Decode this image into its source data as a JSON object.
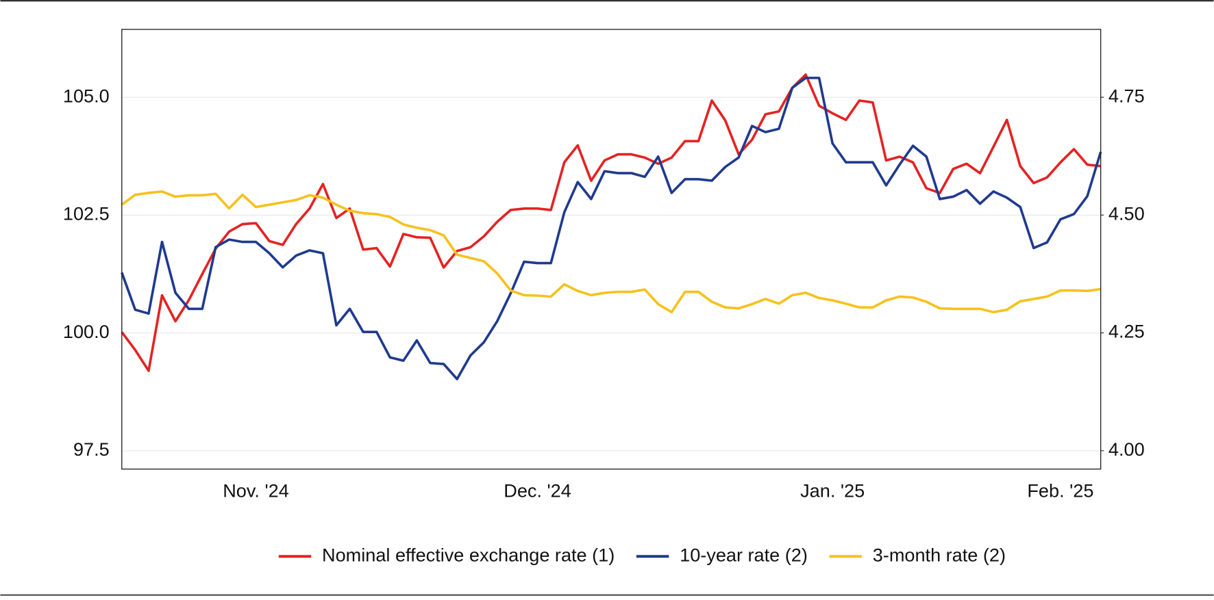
{
  "chart_data": {
    "type": "line",
    "categories": [
      null,
      null,
      null,
      null,
      null,
      null,
      null,
      null,
      null,
      null,
      "Nov. '24",
      null,
      null,
      null,
      null,
      null,
      null,
      null,
      null,
      null,
      null,
      null,
      null,
      null,
      null,
      null,
      null,
      null,
      null,
      null,
      null,
      "Dec. '24",
      null,
      null,
      null,
      null,
      null,
      null,
      null,
      null,
      null,
      null,
      null,
      null,
      null,
      null,
      null,
      null,
      null,
      null,
      null,
      null,
      null,
      "Jan. '25",
      null,
      null,
      null,
      null,
      null,
      null,
      null,
      null,
      null,
      null,
      null,
      null,
      null,
      null,
      null,
      null,
      "Feb. '25",
      null,
      null,
      null
    ],
    "series": [
      {
        "name": "Nominal effective exchange rate (1)",
        "color": "#e52222",
        "values": [
          100.02,
          99.64,
          99.2,
          100.8,
          100.25,
          100.7,
          101.25,
          101.79,
          102.15,
          102.31,
          102.33,
          101.95,
          101.87,
          102.31,
          102.64,
          103.16,
          102.44,
          102.64,
          101.77,
          101.8,
          101.41,
          102.1,
          102.03,
          102.02,
          101.39,
          101.74,
          101.82,
          102.05,
          102.36,
          102.61,
          102.64,
          102.64,
          102.61,
          103.62,
          103.98,
          103.23,
          103.66,
          103.79,
          103.79,
          103.72,
          103.59,
          103.72,
          104.07,
          104.07,
          104.93,
          104.51,
          103.79,
          104.1,
          104.64,
          104.7,
          105.2,
          105.48,
          104.82,
          104.66,
          104.52,
          104.93,
          104.89,
          103.66,
          103.74,
          103.62,
          103.07,
          102.97,
          103.48,
          103.59,
          103.39,
          103.95,
          104.52,
          103.54,
          103.18,
          103.3,
          103.62,
          103.9,
          103.57,
          103.54
        ]
      },
      {
        "name": "10-year rate (2)",
        "color": "#1f3a8f",
        "axis": "y2",
        "values": [
          4.378,
          4.299,
          4.291,
          4.443,
          4.335,
          4.301,
          4.301,
          4.432,
          4.448,
          4.443,
          4.443,
          4.419,
          4.389,
          4.414,
          4.425,
          4.419,
          4.266,
          4.301,
          4.252,
          4.252,
          4.198,
          4.191,
          4.234,
          4.186,
          4.184,
          4.152,
          4.202,
          4.23,
          4.275,
          4.334,
          4.401,
          4.398,
          4.398,
          4.506,
          4.57,
          4.534,
          4.593,
          4.589,
          4.589,
          4.581,
          4.624,
          4.547,
          4.576,
          4.576,
          4.573,
          4.602,
          4.622,
          4.689,
          4.676,
          4.683,
          4.77,
          4.791,
          4.791,
          4.652,
          4.612,
          4.612,
          4.612,
          4.563,
          4.607,
          4.647,
          4.624,
          4.534,
          4.539,
          4.553,
          4.524,
          4.55,
          4.537,
          4.517,
          4.43,
          4.442,
          4.491,
          4.502,
          4.54,
          4.634
        ]
      },
      {
        "name": "3-month rate (2)",
        "color": "#f7c11a",
        "axis": "y2",
        "values": [
          4.522,
          4.543,
          4.547,
          4.55,
          4.539,
          4.542,
          4.542,
          4.545,
          4.514,
          4.543,
          4.517,
          4.522,
          4.527,
          4.532,
          4.542,
          4.537,
          4.522,
          4.509,
          4.504,
          4.502,
          4.496,
          4.48,
          4.473,
          4.468,
          4.457,
          4.416,
          4.409,
          4.402,
          4.376,
          4.34,
          4.33,
          4.329,
          4.327,
          4.353,
          4.339,
          4.33,
          4.335,
          4.337,
          4.337,
          4.342,
          4.311,
          4.294,
          4.337,
          4.337,
          4.316,
          4.304,
          4.302,
          4.311,
          4.322,
          4.312,
          4.33,
          4.335,
          4.324,
          4.319,
          4.312,
          4.304,
          4.304,
          4.319,
          4.327,
          4.325,
          4.316,
          4.302,
          4.301,
          4.301,
          4.301,
          4.294,
          4.299,
          4.317,
          4.322,
          4.327,
          4.34,
          4.34,
          4.339,
          4.343
        ]
      }
    ],
    "ylim": [
      97.115,
      106.44
    ],
    "yticks": [
      {
        "value": 97.5,
        "label": "97.5"
      },
      {
        "value": 100,
        "label": "100.0"
      },
      102.5,
      {
        "value": 105,
        "label": "105.0"
      }
    ],
    "y2lim": [
      3.961,
      4.894
    ],
    "y2ticks": [
      {
        "value": 4,
        "label": "4.00"
      },
      4.25,
      {
        "value": 4.5,
        "label": "4.50"
      },
      4.75
    ],
    "grid": true,
    "legend": "bottom"
  }
}
